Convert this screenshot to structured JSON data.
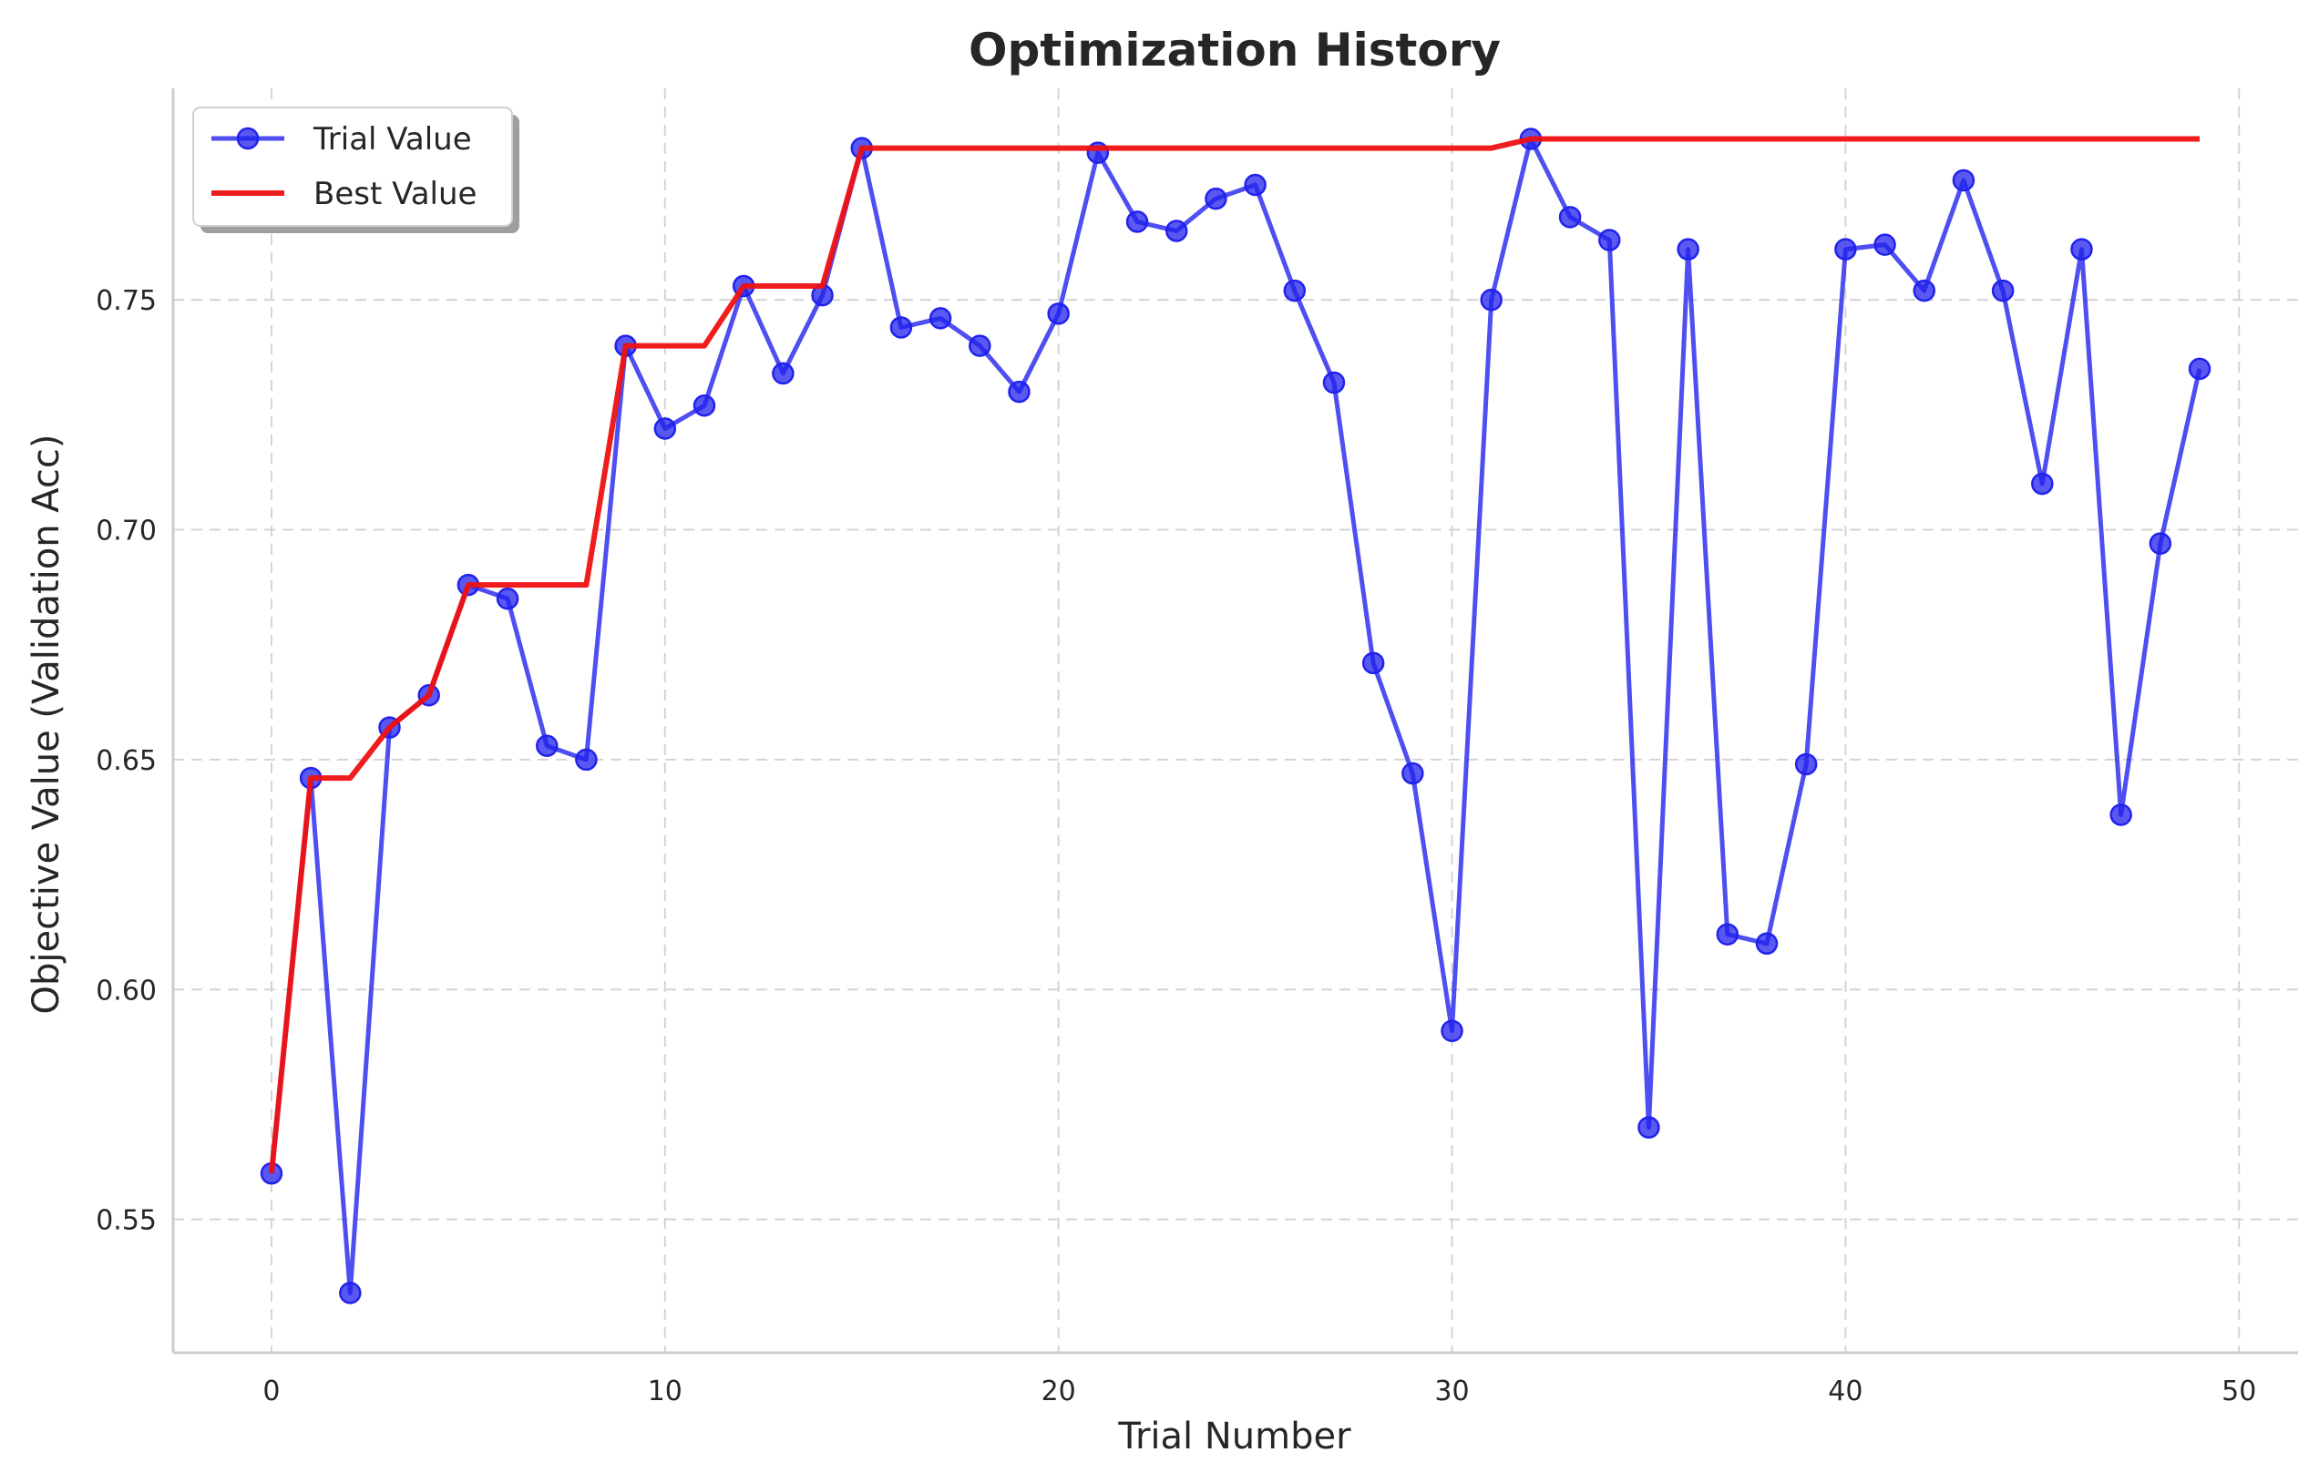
{
  "chart_data": {
    "type": "line",
    "title": "Optimization History",
    "xlabel": "Trial Number",
    "ylabel": "Objective Value (Validation Acc)",
    "xlim": [
      -2.5,
      51.5
    ],
    "ylim": [
      0.521,
      0.796
    ],
    "xticks": [
      0,
      10,
      20,
      30,
      40,
      50
    ],
    "yticks": [
      0.55,
      0.6,
      0.65,
      0.7,
      0.75
    ],
    "ytick_labels": [
      "0.55",
      "0.60",
      "0.65",
      "0.70",
      "0.75"
    ],
    "grid": true,
    "legend_position": "top-left",
    "x": [
      0,
      1,
      2,
      3,
      4,
      5,
      6,
      7,
      8,
      9,
      10,
      11,
      12,
      13,
      14,
      15,
      16,
      17,
      18,
      19,
      20,
      21,
      22,
      23,
      24,
      25,
      26,
      27,
      28,
      29,
      30,
      31,
      32,
      33,
      34,
      35,
      36,
      37,
      38,
      39,
      40,
      41,
      42,
      43,
      44,
      45,
      46,
      47,
      48,
      49
    ],
    "series": [
      {
        "name": "Trial Value",
        "color": "#2222ee",
        "style": "line-with-markers",
        "values": [
          0.56,
          0.646,
          0.534,
          0.657,
          0.664,
          0.688,
          0.685,
          0.653,
          0.65,
          0.74,
          0.722,
          0.727,
          0.753,
          0.734,
          0.751,
          0.783,
          0.744,
          0.746,
          0.74,
          0.73,
          0.747,
          0.782,
          0.767,
          0.765,
          0.772,
          0.775,
          0.752,
          0.732,
          0.671,
          0.647,
          0.591,
          0.75,
          0.785,
          0.768,
          0.763,
          0.57,
          0.761,
          0.612,
          0.61,
          0.649,
          0.761,
          0.762,
          0.752,
          0.776,
          0.752,
          0.71,
          0.761,
          0.638,
          0.697,
          0.735
        ]
      },
      {
        "name": "Best Value",
        "color": "#ee1111",
        "style": "line",
        "values": [
          0.56,
          0.646,
          0.646,
          0.657,
          0.664,
          0.688,
          0.688,
          0.688,
          0.688,
          0.74,
          0.74,
          0.74,
          0.753,
          0.753,
          0.753,
          0.783,
          0.783,
          0.783,
          0.783,
          0.783,
          0.783,
          0.783,
          0.783,
          0.783,
          0.783,
          0.783,
          0.783,
          0.783,
          0.783,
          0.783,
          0.783,
          0.783,
          0.785,
          0.785,
          0.785,
          0.785,
          0.785,
          0.785,
          0.785,
          0.785,
          0.785,
          0.785,
          0.785,
          0.785,
          0.785,
          0.785,
          0.785,
          0.785,
          0.785,
          0.785
        ]
      }
    ]
  }
}
